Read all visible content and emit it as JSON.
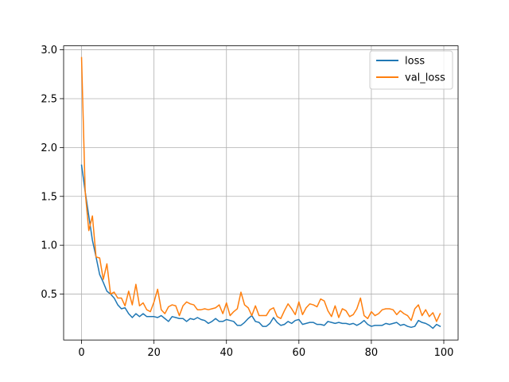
{
  "chart_data": {
    "type": "line",
    "title": "",
    "xlabel": "",
    "ylabel": "",
    "xlim": [
      -4.95,
      103.95
    ],
    "ylim": [
      0.0305,
      3.0405
    ],
    "x_ticks": [
      0,
      20,
      40,
      60,
      80,
      100
    ],
    "y_ticks": [
      0.5,
      1.0,
      1.5,
      2.0,
      2.5,
      3.0
    ],
    "x_tick_labels": [
      "0",
      "20",
      "40",
      "60",
      "80",
      "100"
    ],
    "y_tick_labels": [
      "0.5",
      "1.0",
      "1.5",
      "2.0",
      "2.5",
      "3.0"
    ],
    "grid": true,
    "legend_position": "upper right",
    "series": [
      {
        "name": "loss",
        "color": "#1f77b4",
        "x": [
          0,
          1,
          2,
          3,
          4,
          5,
          6,
          7,
          8,
          9,
          10,
          11,
          12,
          13,
          14,
          15,
          16,
          17,
          18,
          19,
          20,
          21,
          22,
          23,
          24,
          25,
          26,
          27,
          28,
          29,
          30,
          31,
          32,
          33,
          34,
          35,
          36,
          37,
          38,
          39,
          40,
          41,
          42,
          43,
          44,
          45,
          46,
          47,
          48,
          49,
          50,
          51,
          52,
          53,
          54,
          55,
          56,
          57,
          58,
          59,
          60,
          61,
          62,
          63,
          64,
          65,
          66,
          67,
          68,
          69,
          70,
          71,
          72,
          73,
          74,
          75,
          76,
          77,
          78,
          79,
          80,
          81,
          82,
          83,
          84,
          85,
          86,
          87,
          88,
          89,
          90,
          91,
          92,
          93,
          94,
          95,
          96,
          97,
          98,
          99
        ],
        "values": [
          1.82,
          1.55,
          1.3,
          1.05,
          0.88,
          0.7,
          0.62,
          0.53,
          0.5,
          0.46,
          0.39,
          0.35,
          0.36,
          0.3,
          0.26,
          0.3,
          0.27,
          0.3,
          0.27,
          0.27,
          0.27,
          0.26,
          0.28,
          0.25,
          0.22,
          0.27,
          0.26,
          0.25,
          0.25,
          0.22,
          0.25,
          0.24,
          0.26,
          0.24,
          0.23,
          0.2,
          0.22,
          0.25,
          0.22,
          0.22,
          0.24,
          0.23,
          0.22,
          0.18,
          0.18,
          0.21,
          0.25,
          0.28,
          0.22,
          0.21,
          0.17,
          0.17,
          0.2,
          0.26,
          0.21,
          0.18,
          0.19,
          0.22,
          0.2,
          0.23,
          0.24,
          0.19,
          0.2,
          0.21,
          0.21,
          0.19,
          0.19,
          0.18,
          0.22,
          0.21,
          0.2,
          0.21,
          0.2,
          0.2,
          0.19,
          0.2,
          0.18,
          0.2,
          0.23,
          0.19,
          0.17,
          0.18,
          0.18,
          0.18,
          0.2,
          0.19,
          0.2,
          0.21,
          0.18,
          0.19,
          0.17,
          0.16,
          0.17,
          0.23,
          0.21,
          0.2,
          0.18,
          0.15,
          0.19,
          0.17
        ]
      },
      {
        "name": "val_loss",
        "color": "#ff7f0e",
        "x": [
          0,
          1,
          2,
          3,
          4,
          5,
          6,
          7,
          8,
          9,
          10,
          11,
          12,
          13,
          14,
          15,
          16,
          17,
          18,
          19,
          20,
          21,
          22,
          23,
          24,
          25,
          26,
          27,
          28,
          29,
          30,
          31,
          32,
          33,
          34,
          35,
          36,
          37,
          38,
          39,
          40,
          41,
          42,
          43,
          44,
          45,
          46,
          47,
          48,
          49,
          50,
          51,
          52,
          53,
          54,
          55,
          56,
          57,
          58,
          59,
          60,
          61,
          62,
          63,
          64,
          65,
          66,
          67,
          68,
          69,
          70,
          71,
          72,
          73,
          74,
          75,
          76,
          77,
          78,
          79,
          80,
          81,
          82,
          83,
          84,
          85,
          86,
          87,
          88,
          89,
          90,
          91,
          92,
          93,
          94,
          95,
          96,
          97,
          98,
          99
        ],
        "values": [
          2.92,
          1.55,
          1.15,
          1.3,
          0.88,
          0.87,
          0.65,
          0.81,
          0.5,
          0.52,
          0.46,
          0.46,
          0.38,
          0.53,
          0.39,
          0.6,
          0.38,
          0.41,
          0.34,
          0.32,
          0.42,
          0.55,
          0.34,
          0.3,
          0.37,
          0.39,
          0.38,
          0.28,
          0.38,
          0.42,
          0.4,
          0.39,
          0.34,
          0.34,
          0.35,
          0.34,
          0.35,
          0.36,
          0.39,
          0.3,
          0.41,
          0.28,
          0.32,
          0.35,
          0.52,
          0.39,
          0.36,
          0.28,
          0.38,
          0.28,
          0.28,
          0.28,
          0.34,
          0.36,
          0.27,
          0.25,
          0.33,
          0.4,
          0.35,
          0.29,
          0.42,
          0.29,
          0.36,
          0.4,
          0.39,
          0.37,
          0.45,
          0.43,
          0.33,
          0.27,
          0.38,
          0.26,
          0.35,
          0.33,
          0.27,
          0.29,
          0.35,
          0.46,
          0.28,
          0.25,
          0.32,
          0.28,
          0.3,
          0.34,
          0.35,
          0.35,
          0.34,
          0.29,
          0.33,
          0.3,
          0.28,
          0.23,
          0.35,
          0.39,
          0.28,
          0.34,
          0.27,
          0.31,
          0.22,
          0.3
        ]
      }
    ]
  }
}
